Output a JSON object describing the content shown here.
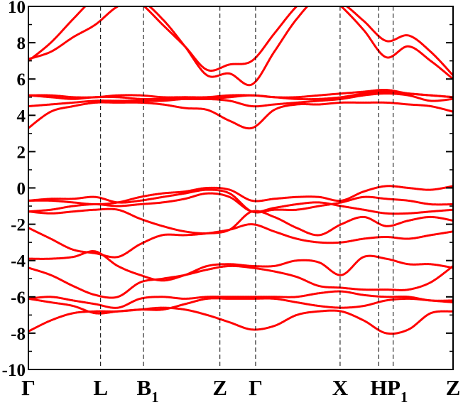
{
  "chart_data": {
    "type": "line",
    "title": "",
    "xlabel": "",
    "ylabel": "",
    "ylim": [
      -10,
      10
    ],
    "yticks": [
      -10,
      -8,
      -6,
      -4,
      -2,
      0,
      2,
      4,
      6,
      8,
      10
    ],
    "grid": false,
    "color": "#ff0000",
    "kpoints": [
      {
        "label": "Γ",
        "sub": "",
        "x": 0.0
      },
      {
        "label": "L",
        "sub": "",
        "x": 0.17
      },
      {
        "label": "B",
        "sub": "1",
        "x": 0.271
      },
      {
        "label": "Z",
        "sub": "",
        "x": 0.451
      },
      {
        "label": "Γ",
        "sub": "",
        "x": 0.535
      },
      {
        "label": "X",
        "sub": "",
        "x": 0.734
      },
      {
        "label": "H",
        "sub": "",
        "x": 0.825
      },
      {
        "label": "P",
        "sub": "1",
        "x": 0.859
      },
      {
        "label": "Z",
        "sub": "",
        "x": 1.0
      }
    ],
    "series": [
      {
        "values": [
          -7.9,
          -7.3,
          -6.9,
          -6.8,
          -6.8,
          -6.7,
          -6.6,
          -6.7,
          -7.0,
          -7.4,
          -7.8,
          -7.6,
          -7.0,
          -6.8,
          -6.8,
          -7.3,
          -8.0,
          -7.8,
          -6.9,
          -6.8
        ]
      },
      {
        "values": [
          -6.1,
          -6.3,
          -6.5,
          -6.9,
          -6.8,
          -6.7,
          -6.7,
          -6.4,
          -6.1,
          -6.1,
          -6.1,
          -6.1,
          -6.3,
          -6.5,
          -6.6,
          -6.5,
          -6.2,
          -6.1,
          -6.2,
          -6.3
        ]
      },
      {
        "values": [
          -6.1,
          -6.0,
          -6.2,
          -6.4,
          -6.6,
          -6.1,
          -6.0,
          -6.1,
          -6.0,
          -6.0,
          -6.0,
          -6.0,
          -6.0,
          -5.8,
          -5.7,
          -5.9,
          -6.0,
          -6.0,
          -6.2,
          -6.2
        ]
      },
      {
        "values": [
          -4.4,
          -4.8,
          -5.4,
          -5.9,
          -6.0,
          -5.2,
          -5.0,
          -4.8,
          -4.5,
          -4.3,
          -4.4,
          -4.6,
          -4.9,
          -5.4,
          -5.5,
          -5.6,
          -5.6,
          -5.6,
          -5.2,
          -4.3
        ]
      },
      {
        "values": [
          -3.9,
          -3.9,
          -3.8,
          -3.5,
          -4.3,
          -4.8,
          -5.1,
          -4.8,
          -4.3,
          -4.2,
          -4.3,
          -4.3,
          -4.0,
          -4.1,
          -4.8,
          -3.8,
          -3.9,
          -4.2,
          -4.2,
          -4.4
        ]
      },
      {
        "values": [
          -2.2,
          -2.8,
          -3.4,
          -3.6,
          -3.8,
          -3.1,
          -2.6,
          -2.6,
          -2.5,
          -2.3,
          -2.0,
          -2.4,
          -2.8,
          -3.0,
          -3.0,
          -2.8,
          -2.7,
          -2.8,
          -2.6,
          -2.4
        ]
      },
      {
        "values": [
          -1.3,
          -1.4,
          -1.3,
          -1.2,
          -1.2,
          -1.7,
          -2.1,
          -2.4,
          -2.5,
          -2.3,
          -1.3,
          -1.6,
          -2.2,
          -2.6,
          -2.0,
          -1.6,
          -2.1,
          -1.8,
          -1.6,
          -1.8
        ]
      },
      {
        "values": [
          -1.3,
          -1.2,
          -1.0,
          -0.9,
          -1.0,
          -0.9,
          -0.8,
          -0.6,
          -0.3,
          -0.5,
          -1.3,
          -1.1,
          -0.9,
          -0.8,
          -1.0,
          -1.2,
          -1.4,
          -1.4,
          -1.3,
          -1.2
        ]
      },
      {
        "values": [
          -0.7,
          -0.6,
          -0.6,
          -0.5,
          -0.8,
          -0.7,
          -0.5,
          -0.3,
          -0.1,
          -0.3,
          -1.3,
          -1.2,
          -1.2,
          -1.0,
          -0.8,
          -0.5,
          -0.6,
          -0.7,
          -0.9,
          -0.9
        ]
      },
      {
        "values": [
          -0.7,
          -0.7,
          -0.8,
          -0.9,
          -0.8,
          -0.5,
          -0.3,
          -0.2,
          0.0,
          -0.1,
          -0.7,
          -0.6,
          -0.5,
          -0.5,
          -0.7,
          -0.2,
          0.1,
          0.0,
          -0.1,
          0.1
        ]
      },
      {
        "values": [
          3.3,
          4.2,
          4.5,
          4.7,
          4.7,
          4.7,
          4.6,
          4.4,
          4.3,
          3.7,
          3.3,
          4.3,
          4.6,
          4.6,
          4.7,
          4.7,
          4.7,
          4.6,
          4.5,
          4.2
        ]
      },
      {
        "values": [
          4.5,
          4.6,
          4.7,
          4.8,
          4.8,
          4.8,
          4.8,
          4.9,
          4.9,
          4.8,
          4.5,
          4.6,
          4.7,
          4.8,
          4.9,
          5.1,
          5.2,
          5.1,
          4.8,
          4.9
        ]
      },
      {
        "values": [
          5.1,
          5.0,
          4.9,
          5.0,
          5.0,
          4.9,
          4.9,
          4.9,
          4.9,
          5.0,
          5.1,
          5.0,
          4.9,
          4.9,
          5.0,
          5.2,
          5.3,
          5.2,
          5.1,
          5.0
        ]
      },
      {
        "values": [
          5.1,
          5.1,
          5.0,
          5.0,
          5.1,
          5.1,
          5.0,
          5.0,
          5.0,
          5.1,
          5.1,
          5.0,
          5.0,
          5.1,
          5.2,
          5.3,
          5.4,
          5.2,
          5.1,
          5.0
        ]
      },
      {
        "values": [
          7.0,
          8.0,
          9.3,
          10.5,
          11.0,
          10.2,
          9.0,
          7.8,
          6.5,
          6.8,
          7.0,
          8.5,
          10.0,
          11.0,
          10.0,
          8.7,
          7.2,
          7.8,
          7.0,
          6.0
        ]
      },
      {
        "values": [
          7.1,
          7.5,
          8.3,
          9.0,
          10.0,
          10.3,
          9.3,
          7.8,
          6.2,
          6.3,
          5.7,
          7.5,
          9.3,
          10.5,
          10.2,
          9.2,
          8.1,
          8.4,
          7.5,
          6.2
        ]
      }
    ]
  }
}
